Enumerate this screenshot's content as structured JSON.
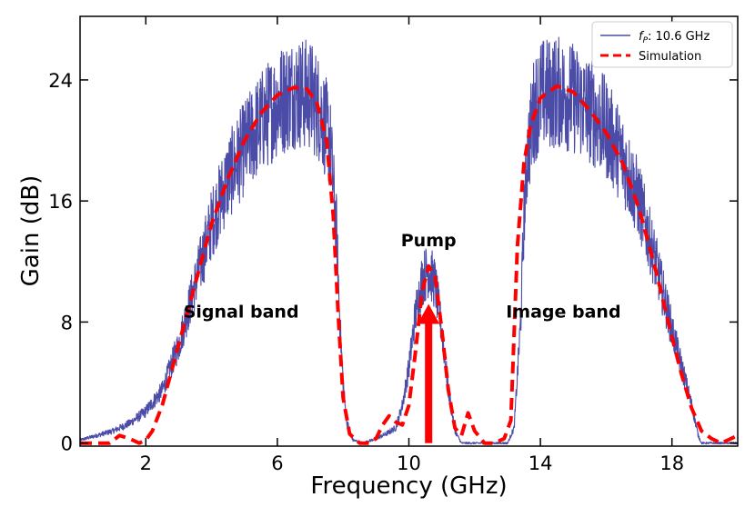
{
  "chart_data": {
    "type": "line",
    "xlabel": "Frequency (GHz)",
    "ylabel": "Gain (dB)",
    "xlim": [
      0,
      20
    ],
    "ylim": [
      -0.2,
      28.2
    ],
    "xticks": [
      2,
      6,
      10,
      14,
      18
    ],
    "yticks": [
      0,
      8,
      16,
      24
    ],
    "grid": false,
    "legend_position": "top-right",
    "series": [
      {
        "name": "f_P: 10.6 GHz",
        "legend_label_parts": [
          "f",
          "P",
          ": 10.6 GHz"
        ],
        "style": "solid",
        "color": "#4b4ba8",
        "noisy": true,
        "x": [
          0.0,
          0.5,
          1.0,
          1.5,
          2.0,
          2.5,
          3.0,
          3.5,
          4.0,
          4.5,
          5.0,
          5.5,
          6.0,
          6.5,
          7.0,
          7.3,
          7.6,
          7.8,
          7.9,
          8.0,
          8.1,
          8.3,
          8.6,
          9.0,
          9.3,
          9.6,
          9.8,
          10.0,
          10.2,
          10.4,
          10.6,
          10.8,
          11.0,
          11.2,
          11.4,
          11.6,
          12.0,
          12.5,
          13.0,
          13.2,
          13.4,
          13.5,
          13.6,
          13.8,
          14.0,
          14.5,
          15.0,
          15.5,
          16.0,
          16.5,
          17.0,
          17.5,
          18.0,
          18.3,
          18.6,
          18.8,
          18.9,
          19.0,
          19.3,
          19.6,
          20.0
        ],
        "y": [
          0.2,
          0.5,
          0.8,
          1.3,
          2.1,
          3.5,
          6.5,
          10.5,
          14.5,
          17.5,
          19.5,
          21.2,
          22.5,
          23.2,
          23.0,
          22.0,
          20.0,
          14.0,
          8.0,
          4.0,
          1.5,
          0.2,
          0.0,
          0.3,
          0.6,
          1.0,
          2.5,
          5.0,
          8.5,
          10.8,
          11.5,
          10.5,
          7.5,
          3.5,
          0.8,
          0.0,
          0.0,
          0.0,
          0.0,
          1.0,
          8.0,
          15.0,
          19.0,
          22.0,
          23.0,
          23.2,
          22.8,
          22.0,
          20.8,
          18.8,
          16.0,
          12.0,
          7.5,
          5.0,
          2.5,
          0.5,
          0.0,
          0.0,
          0.0,
          0.0,
          0.0
        ]
      },
      {
        "name": "Simulation",
        "style": "dashed",
        "color": "#ff0000",
        "noisy": false,
        "x": [
          0.0,
          0.5,
          0.9,
          1.2,
          1.5,
          1.8,
          2.0,
          2.2,
          2.5,
          3.0,
          3.5,
          4.0,
          4.5,
          5.0,
          5.5,
          6.0,
          6.5,
          6.9,
          7.2,
          7.5,
          7.7,
          7.85,
          8.0,
          8.2,
          8.5,
          8.8,
          9.0,
          9.2,
          9.4,
          9.6,
          9.8,
          10.0,
          10.2,
          10.4,
          10.6,
          10.8,
          11.0,
          11.2,
          11.4,
          11.6,
          11.8,
          12.0,
          12.3,
          12.6,
          12.9,
          13.1,
          13.3,
          13.5,
          13.7,
          14.0,
          14.5,
          15.0,
          15.5,
          16.0,
          16.5,
          17.0,
          17.5,
          18.0,
          18.3,
          18.6,
          18.9,
          19.2,
          19.5,
          19.8,
          20.0
        ],
        "y": [
          0.0,
          0.0,
          0.0,
          0.5,
          0.3,
          0.0,
          0.2,
          0.8,
          2.5,
          6.5,
          10.5,
          14.5,
          17.5,
          20.0,
          21.8,
          23.0,
          23.5,
          23.4,
          22.5,
          20.0,
          15.0,
          8.5,
          3.0,
          0.6,
          0.0,
          0.0,
          0.3,
          1.2,
          1.8,
          1.4,
          1.2,
          2.5,
          6.0,
          10.0,
          11.7,
          11.0,
          7.5,
          3.5,
          1.0,
          0.5,
          2.0,
          0.8,
          0.0,
          0.0,
          0.3,
          1.5,
          13.0,
          18.5,
          21.0,
          22.8,
          23.6,
          23.2,
          22.0,
          20.5,
          18.5,
          15.5,
          11.5,
          7.0,
          4.5,
          2.3,
          0.8,
          0.3,
          0.0,
          0.3,
          0.5
        ]
      }
    ],
    "annotations": [
      {
        "text": "Signal band",
        "x": 4.9,
        "y": 8.3
      },
      {
        "text": "Pump",
        "x": 10.6,
        "y": 13.0
      },
      {
        "text": "Image band",
        "x": 14.7,
        "y": 8.3
      }
    ],
    "pump_arrow": {
      "x": 10.6,
      "y_start": 0,
      "y_end": 9.2,
      "color": "#ff0000"
    }
  }
}
